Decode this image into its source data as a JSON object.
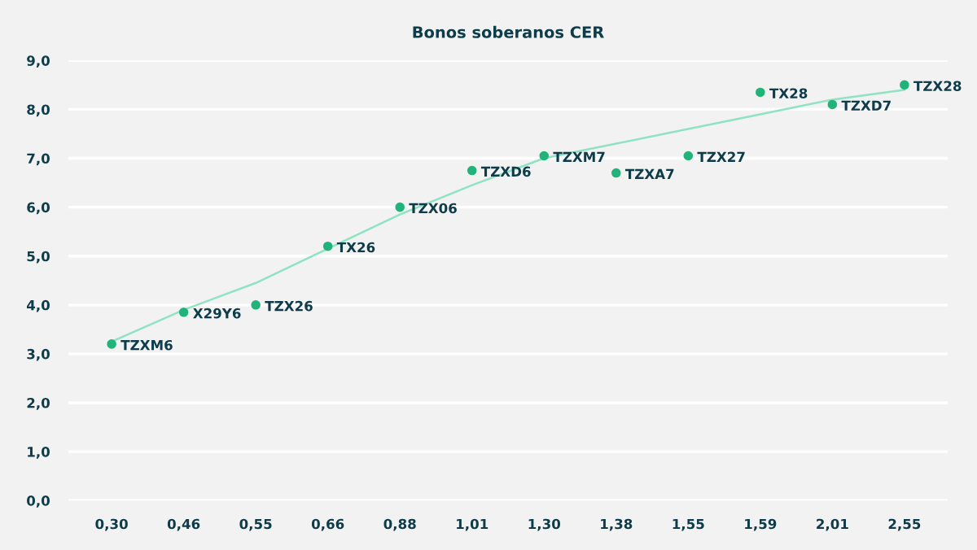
{
  "chart_data": {
    "type": "scatter",
    "title": "Bonos soberanos CER",
    "categories": [
      "0,30",
      "0,46",
      "0,55",
      "0,66",
      "0,88",
      "1,01",
      "1,30",
      "1,38",
      "1,55",
      "1,59",
      "2,01",
      "2,55"
    ],
    "series": [
      {
        "color": "#21b47a",
        "marker": "circle",
        "values": [
          3.2,
          3.85,
          4.0,
          5.2,
          6.0,
          6.75,
          7.05,
          6.7,
          7.05,
          8.35,
          8.1,
          8.5
        ]
      },
      {
        "type": "line",
        "color": "#8fe3c3",
        "marker": "none",
        "line_style": "solid",
        "values": [
          3.25,
          3.9,
          4.45,
          5.15,
          5.85,
          6.45,
          7.0,
          7.3,
          7.6,
          7.9,
          8.2,
          8.4
        ]
      }
    ],
    "ylim": [
      0,
      9
    ],
    "yticks": [
      {
        "value": 0,
        "label": "0,0"
      },
      {
        "value": 1,
        "label": "1,0"
      },
      {
        "value": 2,
        "label": "2,0"
      },
      {
        "value": 3,
        "label": "3,0"
      },
      {
        "value": 4,
        "label": "4,0"
      },
      {
        "value": 5,
        "label": "5,0"
      },
      {
        "value": 6,
        "label": "6,0"
      },
      {
        "value": 7,
        "label": "7,0"
      },
      {
        "value": 8,
        "label": "8,0"
      },
      {
        "value": 9,
        "label": "9,0"
      }
    ],
    "grid": "y",
    "annotations": [
      {
        "text": "TZXM6",
        "x": "0,30",
        "y": 3.2
      },
      {
        "text": "X29Y6",
        "x": "0,46",
        "y": 3.85
      },
      {
        "text": "TZX26",
        "x": "0,55",
        "y": 4.0
      },
      {
        "text": "TX26",
        "x": "0,66",
        "y": 5.2
      },
      {
        "text": "TZX06",
        "x": "0,88",
        "y": 6.0
      },
      {
        "text": "TZXD6",
        "x": "1,01",
        "y": 6.75
      },
      {
        "text": "TZXM7",
        "x": "1,30",
        "y": 7.05
      },
      {
        "text": "TZXA7",
        "x": "1,38",
        "y": 6.7
      },
      {
        "text": "TZX27",
        "x": "1,55",
        "y": 7.05
      },
      {
        "text": "TX28",
        "x": "1,59",
        "y": 8.35
      },
      {
        "text": "TZXD7",
        "x": "2,01",
        "y": 8.1
      },
      {
        "text": "TZX28",
        "x": "2,55",
        "y": 8.5
      }
    ]
  }
}
